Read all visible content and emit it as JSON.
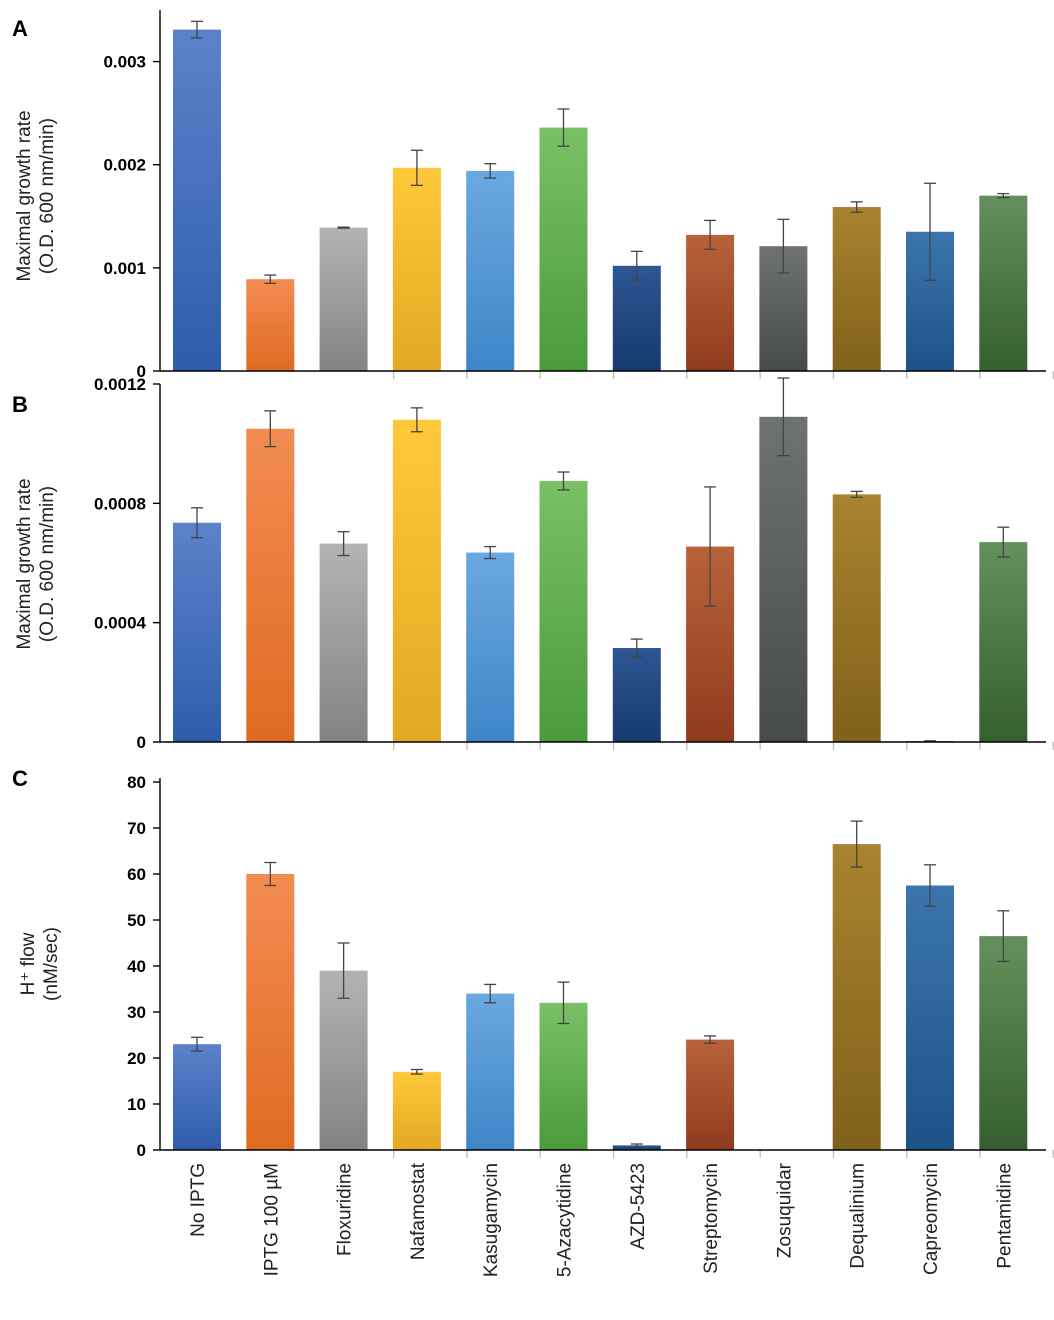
{
  "chart_data": [
    {
      "panel": "A",
      "type": "bar",
      "ylabel_line1": "Maximal growth rate",
      "ylabel_line2": "(O.D. 600 nm/min)",
      "ylim": [
        0,
        0.0035
      ],
      "yticks": [
        {
          "value": 0,
          "label": "0"
        },
        {
          "value": 0.001,
          "label": "0.001"
        },
        {
          "value": 0.002,
          "label": "0.002"
        },
        {
          "value": 0.003,
          "label": "0.003"
        }
      ],
      "values": [
        0.00331,
        0.00089,
        0.00139,
        0.00197,
        0.00194,
        0.00236,
        0.00102,
        0.00132,
        0.00121,
        0.00159,
        0.00135,
        0.0017
      ],
      "errors": [
        8e-05,
        4e-05,
        5e-06,
        0.00017,
        7e-05,
        0.00018,
        0.00014,
        0.00014,
        0.00026,
        5e-05,
        0.00047,
        2e-05
      ]
    },
    {
      "panel": "B",
      "type": "bar",
      "ylabel_line1": "Maximal growth rate",
      "ylabel_line2": "(O.D. 600 nm/min)",
      "ylim": [
        0,
        0.0012
      ],
      "yticks": [
        {
          "value": 0,
          "label": "0"
        },
        {
          "value": 0.0004,
          "label": "0.0004"
        },
        {
          "value": 0.0008,
          "label": "0.0008"
        },
        {
          "value": 0.0012,
          "label": "0.0012"
        }
      ],
      "values": [
        0.000735,
        0.00105,
        0.000665,
        0.00108,
        0.000635,
        0.000875,
        0.000315,
        0.000655,
        0.00109,
        0.00083,
        3e-06,
        0.00067
      ],
      "errors": [
        5e-05,
        6e-05,
        4e-05,
        4e-05,
        2e-05,
        3e-05,
        3e-05,
        0.0002,
        0.00013,
        1e-05,
        1e-06,
        5e-05
      ]
    },
    {
      "panel": "C",
      "type": "bar",
      "ylabel_line1": "H⁺ flow",
      "ylabel_line2": "(nM/sec)",
      "ylim": [
        0,
        80
      ],
      "yticks": [
        {
          "value": 0,
          "label": "0"
        },
        {
          "value": 10,
          "label": "10"
        },
        {
          "value": 20,
          "label": "20"
        },
        {
          "value": 30,
          "label": "30"
        },
        {
          "value": 40,
          "label": "40"
        },
        {
          "value": 50,
          "label": "50"
        },
        {
          "value": 60,
          "label": "60"
        },
        {
          "value": 70,
          "label": "70"
        },
        {
          "value": 80,
          "label": "80"
        }
      ],
      "values": [
        23,
        60,
        39,
        17,
        34,
        32,
        1,
        24,
        0,
        66.5,
        57.5,
        46.5
      ],
      "errors": [
        1.5,
        2.5,
        6,
        0.5,
        2,
        4.5,
        0.3,
        0.8,
        0,
        5,
        4.5,
        5.5
      ]
    }
  ],
  "categories": [
    "No IPTG",
    "IPTG 100 µM",
    "Floxuridine",
    "Nafamostat",
    "Kasugamycin",
    "5-Azacytidine",
    "AZD-5423",
    "Streptomycin",
    "Zosuquidar",
    "Dequalinium",
    "Capreomycin",
    "Pentamidine"
  ],
  "bar_colors": [
    [
      "#5b82c9",
      "#2e5cab"
    ],
    [
      "#f28c52",
      "#e06a22"
    ],
    [
      "#b3b3b3",
      "#838383"
    ],
    [
      "#ffc83a",
      "#e3a824"
    ],
    [
      "#6aa8e0",
      "#3e86c7"
    ],
    [
      "#7ac066",
      "#4a9a3c"
    ],
    [
      "#2e5692",
      "#153a6e"
    ],
    [
      "#b8623b",
      "#8d3c1c"
    ],
    [
      "#6e7272",
      "#464a4a"
    ],
    [
      "#a88330",
      "#80611a"
    ],
    [
      "#3c75ad",
      "#1c5288"
    ],
    [
      "#63905c",
      "#355f2e"
    ]
  ]
}
